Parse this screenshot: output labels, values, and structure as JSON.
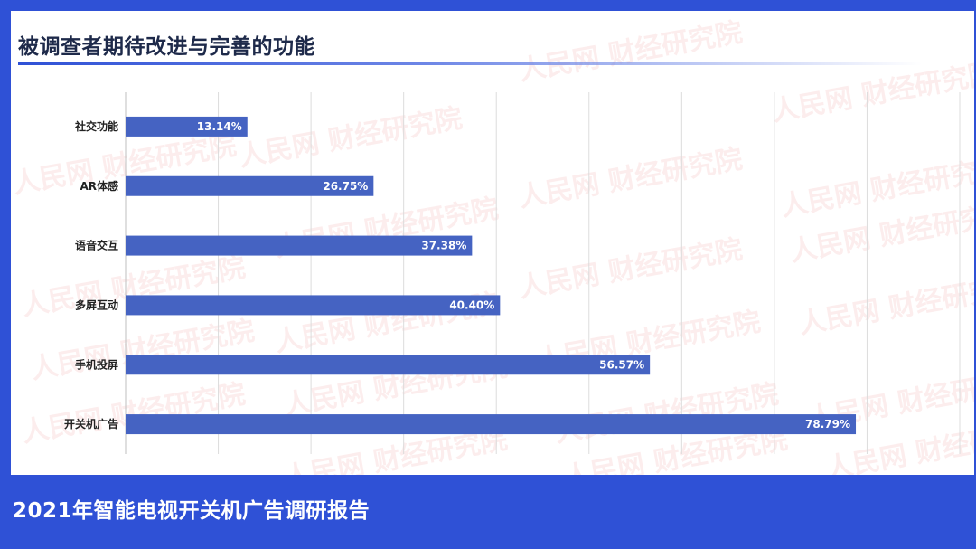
{
  "page": {
    "title": "被调查者期待改进与完善的功能",
    "footer_title": "2021年智能电视开关机广告调研报告",
    "watermark_text": "人民网 财经研究院",
    "colors": {
      "brand_blue": "#2f51d6",
      "bar": "#4563c2",
      "background": "#ffffff",
      "title_text": "#1e2a4a",
      "gridline": "#dcdcdc"
    }
  },
  "chart_data": {
    "type": "bar",
    "orientation": "horizontal",
    "title": "被调查者期待改进与完善的功能",
    "categories": [
      "社交功能",
      "AR体感",
      "语音交互",
      "多屏互动",
      "手机投屏",
      "开关机广告"
    ],
    "values": [
      13.14,
      26.75,
      37.38,
      40.4,
      56.57,
      78.79
    ],
    "value_labels": [
      "13.14%",
      "26.75%",
      "37.38%",
      "40.40%",
      "56.57%",
      "78.79%"
    ],
    "unit": "%",
    "xlim": [
      0,
      90
    ],
    "grid": "vertical",
    "legend": "none"
  }
}
